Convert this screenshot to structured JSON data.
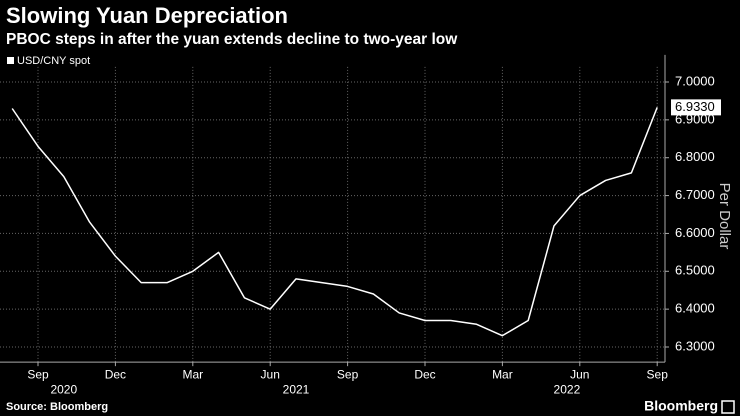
{
  "chart_data": {
    "type": "line",
    "title": "Slowing Yuan Depreciation",
    "subtitle": "PBOC steps in after the yuan extends decline to two-year low",
    "y_label": "Per Dollar",
    "source": "Source: Bloomberg",
    "brand": "Bloomberg",
    "x": [
      "2020-08",
      "2020-09",
      "2020-10",
      "2020-11",
      "2020-12",
      "2021-01",
      "2021-02",
      "2021-03",
      "2021-04",
      "2021-05",
      "2021-06",
      "2021-07",
      "2021-08",
      "2021-09",
      "2021-10",
      "2021-11",
      "2021-12",
      "2022-01",
      "2022-02",
      "2022-03",
      "2022-04",
      "2022-05",
      "2022-06",
      "2022-07",
      "2022-08",
      "2022-09"
    ],
    "series": [
      {
        "name": "USD/CNY spot",
        "color": "#ffffff",
        "values": [
          6.93,
          6.83,
          6.75,
          6.63,
          6.54,
          6.47,
          6.47,
          6.5,
          6.55,
          6.43,
          6.4,
          6.48,
          6.47,
          6.46,
          6.44,
          6.39,
          6.37,
          6.37,
          6.36,
          6.33,
          6.37,
          6.62,
          6.7,
          6.74,
          6.76,
          6.933
        ],
        "value_labels": [
          null,
          null,
          null,
          null,
          null,
          null,
          null,
          null,
          null,
          null,
          null,
          null,
          null,
          null,
          null,
          null,
          null,
          null,
          null,
          null,
          null,
          null,
          null,
          null,
          null,
          "6.9330"
        ]
      }
    ],
    "xlim": [
      "2020-07",
      "2022-09"
    ],
    "xticks": [
      {
        "value": "2020-09",
        "label": "Sep"
      },
      {
        "value": "2020-12",
        "label": "Dec"
      },
      {
        "value": "2021-03",
        "label": "Mar"
      },
      {
        "value": "2021-06",
        "label": "Jun"
      },
      {
        "value": "2021-09",
        "label": "Sep"
      },
      {
        "value": "2021-12",
        "label": "Dec"
      },
      {
        "value": "2022-03",
        "label": "Mar"
      },
      {
        "value": "2022-06",
        "label": "Jun"
      },
      {
        "value": "2022-09",
        "label": "Sep"
      }
    ],
    "years": [
      "2020",
      "2021",
      "2022"
    ],
    "ylim": [
      6.26,
      7.04
    ],
    "yticks": [
      {
        "value": 7,
        "label": "7.0000"
      },
      {
        "value": 6.9,
        "label": "6.9000"
      },
      {
        "value": 6.8,
        "label": "6.8000"
      },
      {
        "value": 6.7,
        "label": "6.7000"
      },
      {
        "value": 6.6,
        "label": "6.6000"
      },
      {
        "value": 6.5,
        "label": "6.5000"
      },
      {
        "value": 6.4,
        "label": "6.4000"
      },
      {
        "value": 6.3,
        "label": "6.3000"
      }
    ],
    "grid": true,
    "legend": "top-left"
  }
}
